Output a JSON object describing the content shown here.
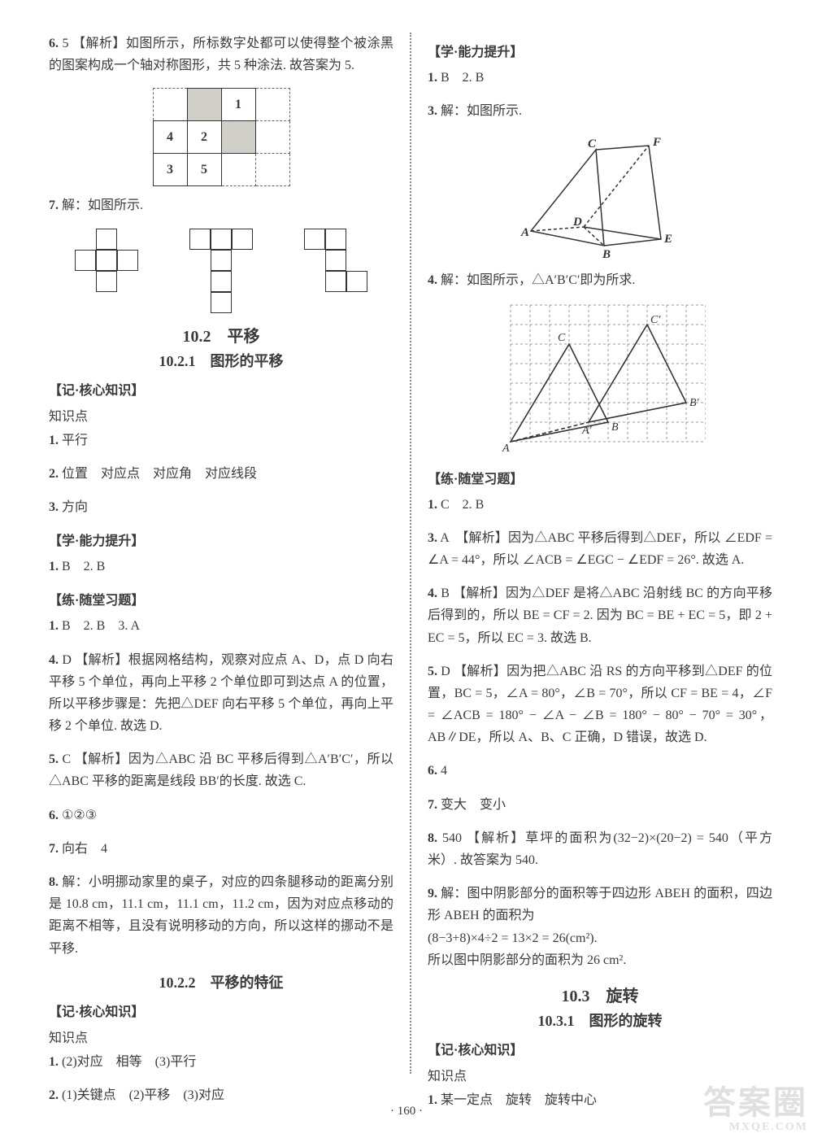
{
  "left": {
    "q6": {
      "num": "6.",
      "ans": "5",
      "label": "【解析】",
      "text": "如图所示，所标数字处都可以使得整个被涂黑的图案构成一个轴对称图形，共 5 种涂法. 故答案为 5.",
      "grid": [
        [
          "",
          "shaded",
          "1",
          ""
        ],
        [
          "4",
          "2",
          "shaded",
          ""
        ],
        [
          "3",
          "5",
          "",
          ""
        ]
      ]
    },
    "q7": {
      "num": "7.",
      "text": "解：如图所示."
    },
    "sec102": {
      "title": "10.2　平移",
      "sub": "10.2.1　图形的平移"
    },
    "core1": {
      "heading": "【记·核心知识】",
      "kp": "知识点",
      "p1": {
        "num": "1.",
        "text": "平行"
      },
      "p2": {
        "num": "2.",
        "text": "位置　对应点　对应角　对应线段"
      },
      "p3": {
        "num": "3.",
        "text": "方向"
      }
    },
    "ability1": {
      "heading": "【学·能力提升】",
      "p1": {
        "num": "1.",
        "text": "B　2. B"
      }
    },
    "practice1": {
      "heading": "【练·随堂习题】",
      "p1": {
        "num": "1.",
        "text": "B　2. B　3. A"
      },
      "p4": {
        "num": "4.",
        "ans": "D",
        "label": "【解析】",
        "text": "根据网格结构，观察对应点 A、D，点 D 向右平移 5 个单位，再向上平移 2 个单位即可到达点 A 的位置，所以平移步骤是：先把△DEF 向右平移 5 个单位，再向上平移 2 个单位. 故选 D."
      },
      "p5": {
        "num": "5.",
        "ans": "C",
        "label": "【解析】",
        "text": "因为△ABC 沿 BC 平移后得到△A′B′C′，所以△ABC 平移的距离是线段 BB′的长度. 故选 C."
      },
      "p6": {
        "num": "6.",
        "text": "①②③"
      },
      "p7": {
        "num": "7.",
        "text": "向右　4"
      },
      "p8": {
        "num": "8.",
        "text": "解：小明挪动家里的桌子，对应的四条腿移动的距离分别是 10.8 cm，11.1 cm，11.1 cm，11.2 cm，因为对应点移动的距离不相等，且没有说明移动的方向，所以这样的挪动不是平移."
      }
    },
    "sec1022": {
      "title": "10.2.2　平移的特征"
    },
    "core2": {
      "heading": "【记·核心知识】",
      "kp": "知识点",
      "p1": {
        "num": "1.",
        "text": "(2)对应　相等　(3)平行"
      },
      "p2": {
        "num": "2.",
        "text": "(1)关键点　(2)平移　(3)对应"
      }
    }
  },
  "right": {
    "ability2": {
      "heading": "【学·能力提升】",
      "p1": {
        "num": "1.",
        "text": "B　2. B"
      },
      "p3": {
        "num": "3.",
        "text": "解：如图所示."
      },
      "p4": {
        "num": "4.",
        "text": "解：如图所示，△A′B′C′即为所求."
      }
    },
    "practice2": {
      "heading": "【练·随堂习题】",
      "p1": {
        "num": "1.",
        "text": "C　2. B"
      },
      "p3": {
        "num": "3.",
        "ans": "A",
        "label": "【解析】",
        "text": "因为△ABC 平移后得到△DEF，所以 ∠EDF = ∠A = 44°，所以 ∠ACB = ∠EGC − ∠EDF = 26°. 故选 A."
      },
      "p4": {
        "num": "4.",
        "ans": "B",
        "label": "【解析】",
        "text": "因为△DEF 是将△ABC 沿射线 BC 的方向平移后得到的，所以 BE = CF = 2. 因为 BC = BE + EC = 5，即 2 + EC = 5，所以 EC = 3. 故选 B."
      },
      "p5": {
        "num": "5.",
        "ans": "D",
        "label": "【解析】",
        "text": "因为把△ABC 沿 RS 的方向平移到△DEF 的位置，BC = 5，∠A = 80°，∠B = 70°，所以 CF = BE = 4，∠F = ∠ACB = 180° − ∠A − ∠B = 180° − 80° − 70° = 30°，AB∥DE，所以 A、B、C 正确，D 错误，故选 D."
      },
      "p6": {
        "num": "6.",
        "text": "4"
      },
      "p7": {
        "num": "7.",
        "text": "变大　变小"
      },
      "p8": {
        "num": "8.",
        "ans": "540",
        "label": "【解析】",
        "text": "草坪的面积为(32−2)×(20−2) = 540（平方米）. 故答案为 540."
      },
      "p9": {
        "num": "9.",
        "text": "解：图中阴影部分的面积等于四边形 ABEH 的面积，四边形 ABEH 的面积为",
        "calc": "(8−3+8)×4÷2 = 13×2 = 26(cm²).",
        "conclusion": "所以图中阴影部分的面积为 26 cm²."
      }
    },
    "sec103": {
      "title": "10.3　旋转",
      "sub": "10.3.1　图形的旋转"
    },
    "core3": {
      "heading": "【记·核心知识】",
      "kp": "知识点",
      "p1": {
        "num": "1.",
        "text": "某一定点　旋转　旋转中心"
      }
    }
  },
  "pageNum": "· 160 ·",
  "watermark": {
    "main": "答案圈",
    "url": "MXQE.COM"
  },
  "svg3d": {
    "labels": {
      "A": "A",
      "B": "B",
      "C": "C",
      "D": "D",
      "E": "E",
      "F": "F"
    },
    "stroke": "#333333"
  },
  "svgGrid": {
    "cols": 10,
    "rows": 7,
    "cell": 24,
    "stroke": "#999999",
    "dash": "3,3",
    "triangle1_color": "#333333",
    "triangle2_color": "#333333",
    "labels": {
      "A": "A",
      "B": "B",
      "C": "C",
      "Ap": "A′",
      "Bp": "B′",
      "Cp": "C′"
    }
  }
}
